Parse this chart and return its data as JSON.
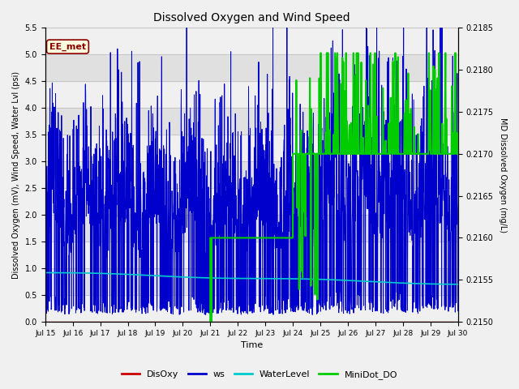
{
  "title": "Dissolved Oxygen and Wind Speed",
  "ylabel_left": "Dissolved Oxygen (mV), Wind Speed, Water Lvl (psi)",
  "ylabel_right": "MD Dissolved Oxygen (mg/L)",
  "xlabel": "Time",
  "ylim_left": [
    0.0,
    5.5
  ],
  "ylim_right": [
    0.215,
    0.2185
  ],
  "xtick_labels": [
    "Jul 15",
    "Jul 16",
    "Jul 17",
    "Jul 18",
    "Jul 19",
    "Jul 20",
    "Jul 21",
    "Jul 22",
    "Jul 23",
    "Jul 24",
    "Jul 25",
    "Jul 26",
    "Jul 27",
    "Jul 28",
    "Jul 29",
    "Jul 30"
  ],
  "station_label": "EE_met",
  "bg_color": "#f0f0f0",
  "plot_bg_color": "#f0f0f0",
  "stripe_color": "#e0e0e0",
  "colors": {
    "DisOxy": "#cc0000",
    "ws": "#0000cc",
    "WaterLevel": "#00cccc",
    "MiniDot_DO": "#00cc00"
  },
  "right_yticks": [
    0.215,
    0.2155,
    0.216,
    0.2165,
    0.217,
    0.2175,
    0.218,
    0.2185
  ],
  "left_yticks": [
    0.0,
    0.5,
    1.0,
    1.5,
    2.0,
    2.5,
    3.0,
    3.5,
    4.0,
    4.5,
    5.0,
    5.5
  ]
}
